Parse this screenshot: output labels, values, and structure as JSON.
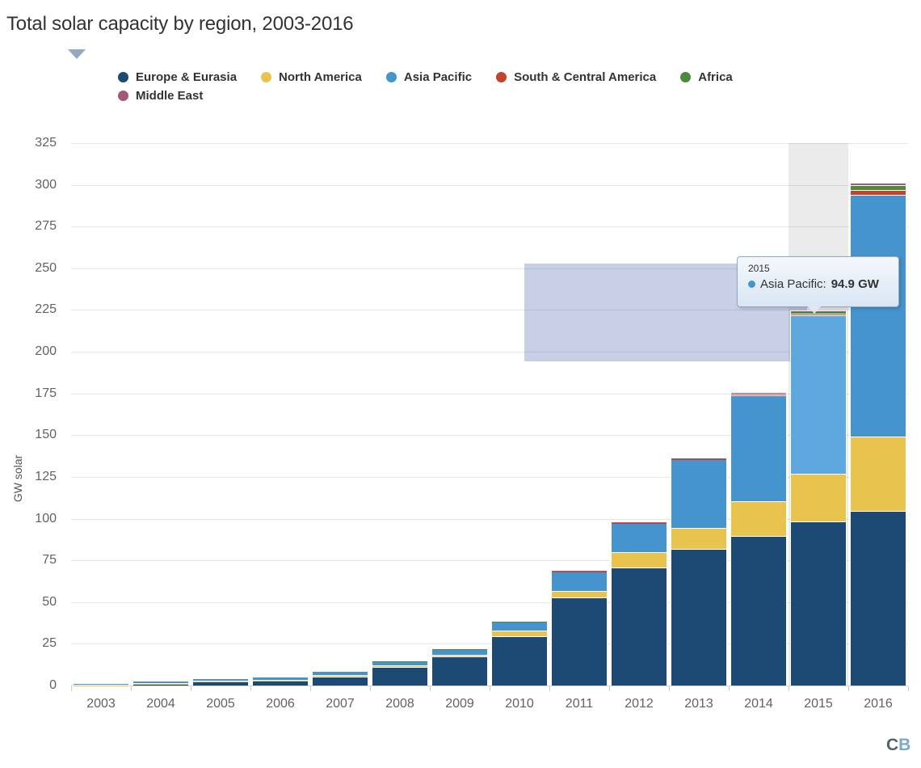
{
  "title": "Total solar capacity by region, 2003-2016",
  "y_axis": {
    "title": "GW solar"
  },
  "tooltip": {
    "year": "2015",
    "series_label": "Asia Pacific:",
    "value": "94.9 GW"
  },
  "branding": {
    "logo_first": "C",
    "logo_second": "B",
    "logo_first_color": "#57626c",
    "logo_second_color": "#7aa9cc"
  },
  "chart_data": {
    "type": "bar",
    "stacked": true,
    "title": "Total solar capacity by region, 2003-2016",
    "xlabel": "",
    "ylabel": "GW solar",
    "ylim": [
      0,
      325
    ],
    "yticks": [
      0,
      25,
      50,
      75,
      100,
      125,
      150,
      175,
      200,
      225,
      250,
      275,
      300,
      325
    ],
    "grid": true,
    "legend_position": "top",
    "categories": [
      "2003",
      "2004",
      "2005",
      "2006",
      "2007",
      "2008",
      "2009",
      "2010",
      "2011",
      "2012",
      "2013",
      "2014",
      "2015",
      "2016"
    ],
    "series": [
      {
        "name": "Europe & Eurasia",
        "color": "#1d4a74",
        "values": [
          0.4,
          1.2,
          2.2,
          2.9,
          5.3,
          11.1,
          17.4,
          29.5,
          52.8,
          70.9,
          81.7,
          89.5,
          98.2,
          104.4
        ]
      },
      {
        "name": "North America",
        "color": "#e8c44f",
        "values": [
          0.3,
          0.4,
          0.5,
          0.6,
          0.8,
          0.9,
          1.0,
          3.3,
          3.8,
          9.0,
          12.6,
          20.8,
          28.5,
          45.0
        ]
      },
      {
        "name": "Asia Pacific",
        "color": "#4594ce",
        "highlight_color": "#5ea7df",
        "values": [
          0.6,
          1.4,
          1.7,
          1.8,
          2.6,
          2.9,
          3.9,
          5.8,
          12.1,
          17.5,
          41.2,
          63.8,
          94.9,
          144.5
        ]
      },
      {
        "name": "South & Central America",
        "color": "#c0442e",
        "values": [
          0,
          0,
          0,
          0,
          0,
          0,
          0.1,
          0.1,
          0.2,
          0.3,
          0.4,
          0.6,
          1.1,
          2.8
        ]
      },
      {
        "name": "Africa",
        "color": "#4d8a3e",
        "values": [
          0,
          0,
          0,
          0,
          0,
          0.1,
          0.1,
          0.2,
          0.3,
          0.4,
          0.5,
          0.9,
          1.5,
          3.2
        ]
      },
      {
        "name": "Middle East",
        "color": "#a25a79",
        "values": [
          0,
          0,
          0,
          0,
          0,
          0,
          0,
          0,
          0.1,
          0.1,
          0.2,
          0.3,
          0.5,
          1.3
        ]
      }
    ],
    "highlight": {
      "year": "2015",
      "year_index": 12,
      "series": "Asia Pacific"
    },
    "selection_region": {
      "from_year_index": 7.58,
      "to_year_index": 12.31,
      "from_gw": 194,
      "to_gw": 253
    }
  }
}
